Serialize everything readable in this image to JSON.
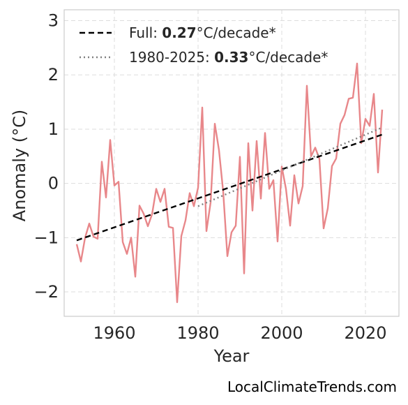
{
  "chart_data": {
    "type": "line",
    "xlabel": "Year",
    "ylabel": "Anomaly (°C)",
    "xlim": [
      1948,
      2028
    ],
    "ylim": [
      -2.45,
      3.2
    ],
    "x_ticks": [
      1960,
      1980,
      2000,
      2020
    ],
    "y_ticks": [
      -2,
      -1,
      0,
      1,
      2,
      3
    ],
    "y_tick_labels": [
      "−2",
      "−1",
      "0",
      "1",
      "2",
      "3"
    ],
    "grid": true,
    "legend_placement": "top-left",
    "series": [
      {
        "color": "#e8878a",
        "x": [
          1951,
          1952,
          1953,
          1954,
          1955,
          1956,
          1957,
          1958,
          1959,
          1960,
          1961,
          1962,
          1963,
          1964,
          1965,
          1966,
          1967,
          1968,
          1969,
          1970,
          1971,
          1972,
          1973,
          1974,
          1975,
          1976,
          1977,
          1978,
          1979,
          1980,
          1981,
          1982,
          1983,
          1984,
          1985,
          1986,
          1987,
          1988,
          1989,
          1990,
          1991,
          1992,
          1993,
          1994,
          1995,
          1996,
          1997,
          1998,
          1999,
          2000,
          2001,
          2002,
          2003,
          2004,
          2005,
          2006,
          2007,
          2008,
          2009,
          2010,
          2011,
          2012,
          2013,
          2014,
          2015,
          2016,
          2017,
          2018,
          2019,
          2020,
          2021,
          2022,
          2023,
          2024
        ],
        "y": [
          -1.12,
          -1.44,
          -1.0,
          -0.74,
          -0.98,
          -1.02,
          0.4,
          -0.26,
          0.8,
          -0.04,
          0.03,
          -1.08,
          -1.3,
          -1.0,
          -1.72,
          -0.41,
          -0.56,
          -0.79,
          -0.57,
          -0.1,
          -0.34,
          -0.1,
          -0.8,
          -0.82,
          -2.19,
          -0.97,
          -0.68,
          -0.18,
          -0.42,
          -0.08,
          1.4,
          -0.88,
          -0.35,
          1.1,
          0.61,
          -0.15,
          -1.34,
          -0.9,
          -0.78,
          0.49,
          -1.66,
          0.74,
          -0.5,
          0.78,
          -0.28,
          0.93,
          -0.1,
          0.06,
          -1.07,
          0.31,
          -0.1,
          -0.78,
          0.15,
          -0.37,
          -0.05,
          1.8,
          0.5,
          0.66,
          0.45,
          -0.83,
          -0.46,
          0.32,
          0.46,
          1.1,
          1.26,
          1.56,
          1.58,
          2.21,
          0.74,
          1.19,
          1.06,
          1.65,
          0.2,
          1.36
        ]
      },
      {
        "name": "Full",
        "color": "#000000",
        "style": "dashed",
        "x": [
          1951,
          2024
        ],
        "y": [
          -1.05,
          0.9
        ]
      },
      {
        "name": "1980-2025",
        "color": "#808080",
        "style": "dotted",
        "x": [
          1980,
          2024
        ],
        "y": [
          -0.42,
          1.03
        ]
      }
    ],
    "legend": [
      {
        "series": "Full",
        "prefix": "Full: ",
        "value": "0.27",
        "suffix": "°C/decade*"
      },
      {
        "series": "1980-2025",
        "prefix": "1980-2025: ",
        "value": "0.33",
        "suffix": "°C/decade*"
      }
    ]
  },
  "credit": "LocalClimateTrends.com"
}
